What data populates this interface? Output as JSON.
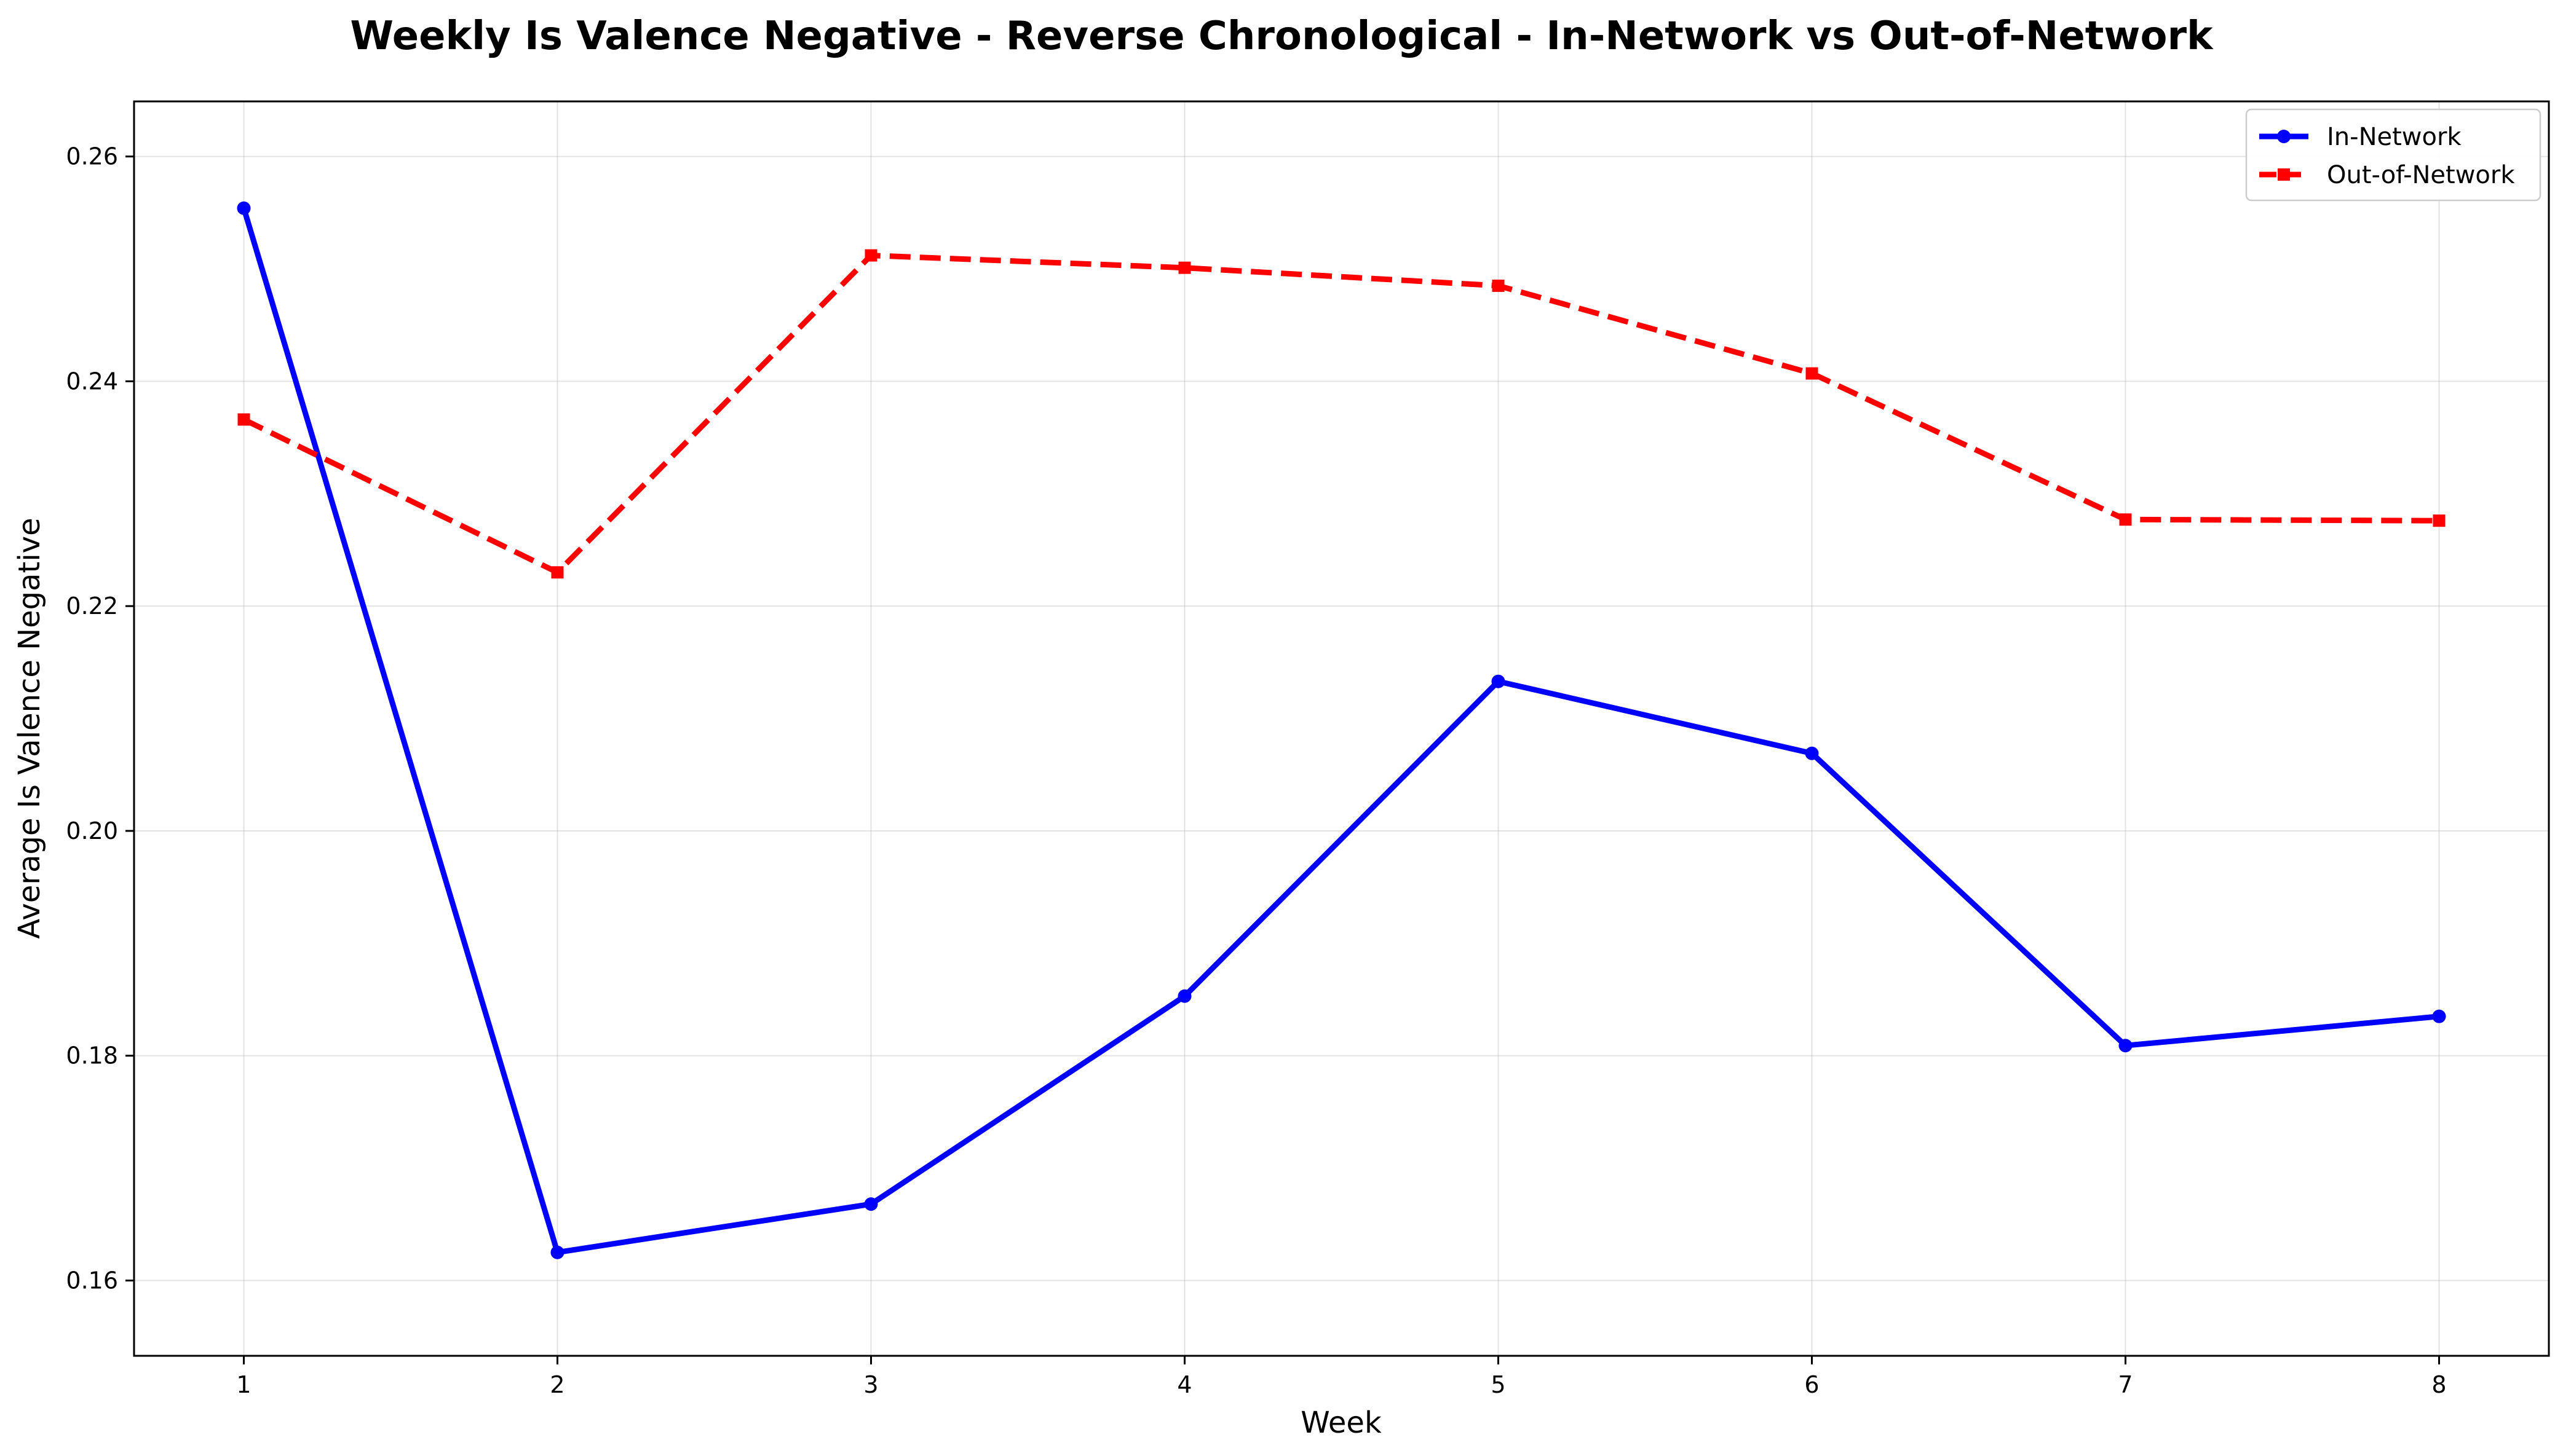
{
  "chart_data": {
    "type": "line",
    "title": "Weekly Is Valence Negative - Reverse Chronological - In-Network vs Out-of-Network",
    "xlabel": "Week",
    "ylabel": "Average Is Valence Negative",
    "x": [
      1,
      2,
      3,
      4,
      5,
      6,
      7,
      8
    ],
    "xticks": [
      "1",
      "2",
      "3",
      "4",
      "5",
      "6",
      "7",
      "8"
    ],
    "xlim": [
      0.65,
      8.35
    ],
    "ylim": [
      0.1533,
      0.2649
    ],
    "yticks": [
      "0.16",
      "0.18",
      "0.20",
      "0.22",
      "0.24",
      "0.26"
    ],
    "ytick_values": [
      0.16,
      0.18,
      0.2,
      0.22,
      0.24,
      0.26
    ],
    "grid": true,
    "legend_position": "top-right",
    "series": [
      {
        "name": "In-Network",
        "color": "#0000ff",
        "line_style": "solid",
        "marker": "circle",
        "values": [
          0.2554,
          0.1625,
          0.1668,
          0.1853,
          0.2133,
          0.2069,
          0.1809,
          0.1835
        ]
      },
      {
        "name": "Out-of-Network",
        "color": "#ff0000",
        "line_style": "dashed",
        "marker": "square",
        "values": [
          0.2366,
          0.223,
          0.2512,
          0.2501,
          0.2485,
          0.2407,
          0.2277,
          0.2276
        ]
      }
    ]
  }
}
